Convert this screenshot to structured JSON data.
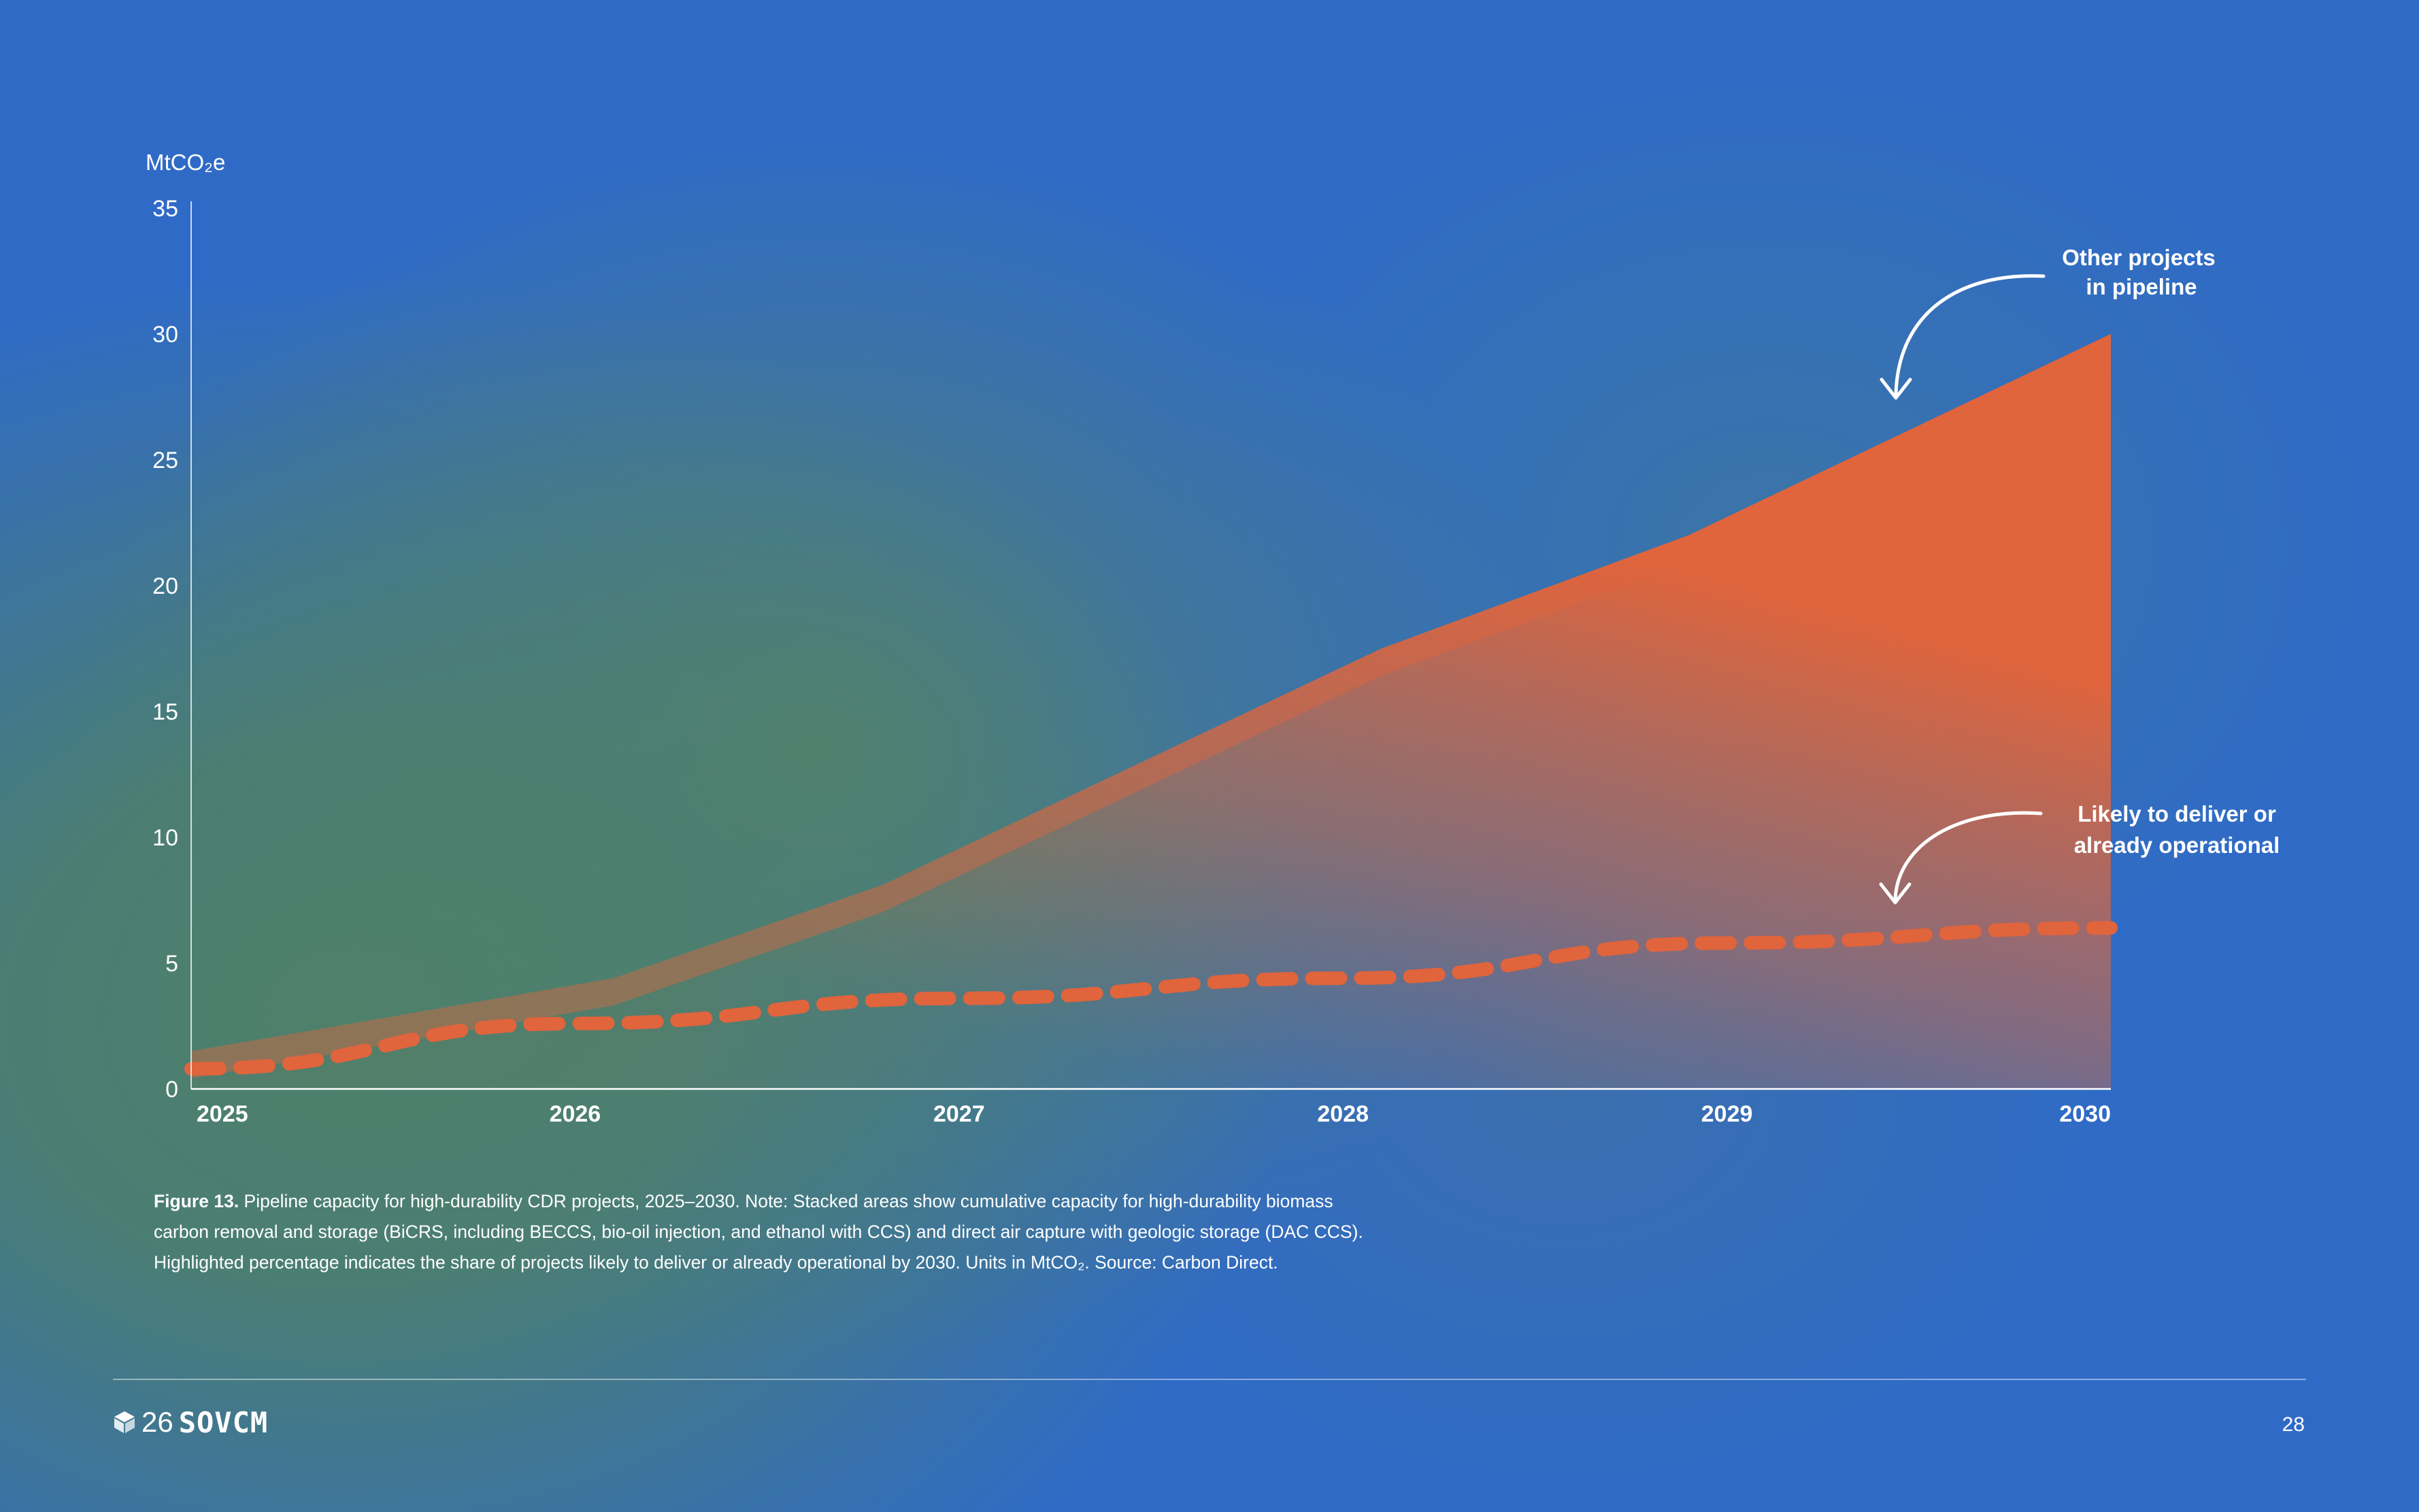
{
  "chart_data": {
    "type": "area",
    "ylabel": "MtCO₂e",
    "ylim": [
      0,
      35
    ],
    "y_ticks": [
      0,
      5,
      10,
      15,
      20,
      25,
      30,
      35
    ],
    "x": [
      2025,
      2026,
      2027,
      2028,
      2029,
      2030
    ],
    "x_tick_labels": [
      "2025",
      "2026",
      "2027",
      "2028",
      "2029",
      "2030"
    ],
    "grid": false,
    "series": [
      {
        "name": "Other projects in pipeline",
        "style": "filled-area",
        "color": "#e0643c",
        "points": [
          [
            2025,
            1.5
          ],
          [
            2026.1,
            4.4
          ],
          [
            2026.8,
            8.1
          ],
          [
            2028.1,
            17.5
          ],
          [
            2028.9,
            22.0
          ],
          [
            2030,
            30.0
          ]
        ]
      },
      {
        "name": "Likely to deliver or already operational",
        "style": "dashed-line",
        "color": "#e0643c",
        "points": [
          [
            2025,
            0.8
          ],
          [
            2026,
            2.6
          ],
          [
            2027,
            3.6
          ],
          [
            2028,
            4.4
          ],
          [
            2029,
            5.8
          ],
          [
            2030,
            6.4
          ]
        ]
      }
    ],
    "annotations": [
      {
        "lines": [
          "Other projects",
          "in pipeline"
        ],
        "points_to": "Other projects in pipeline"
      },
      {
        "lines": [
          "Likely to deliver or",
          "already operational"
        ],
        "points_to": "Likely to deliver or already operational"
      }
    ]
  },
  "caption": {
    "label": "Figure 13.",
    "lines": [
      " Pipeline capacity for high-durability CDR projects, 2025–2030. Note: Stacked areas show cumulative capacity for high-durability biomass",
      "carbon removal and storage (BiCRS, including BECCS, bio-oil injection, and ethanol with CCS) and direct air capture with geologic storage (DAC CCS).",
      "Highlighted percentage indicates the share of projects likely to deliver or already operational by 2030. Units in MtCO₂. Source: Carbon Direct."
    ]
  },
  "footer": {
    "logo_number": "26",
    "logo_word": "SOVCM",
    "logo_icon": "cube-icon",
    "page_number": "28"
  }
}
